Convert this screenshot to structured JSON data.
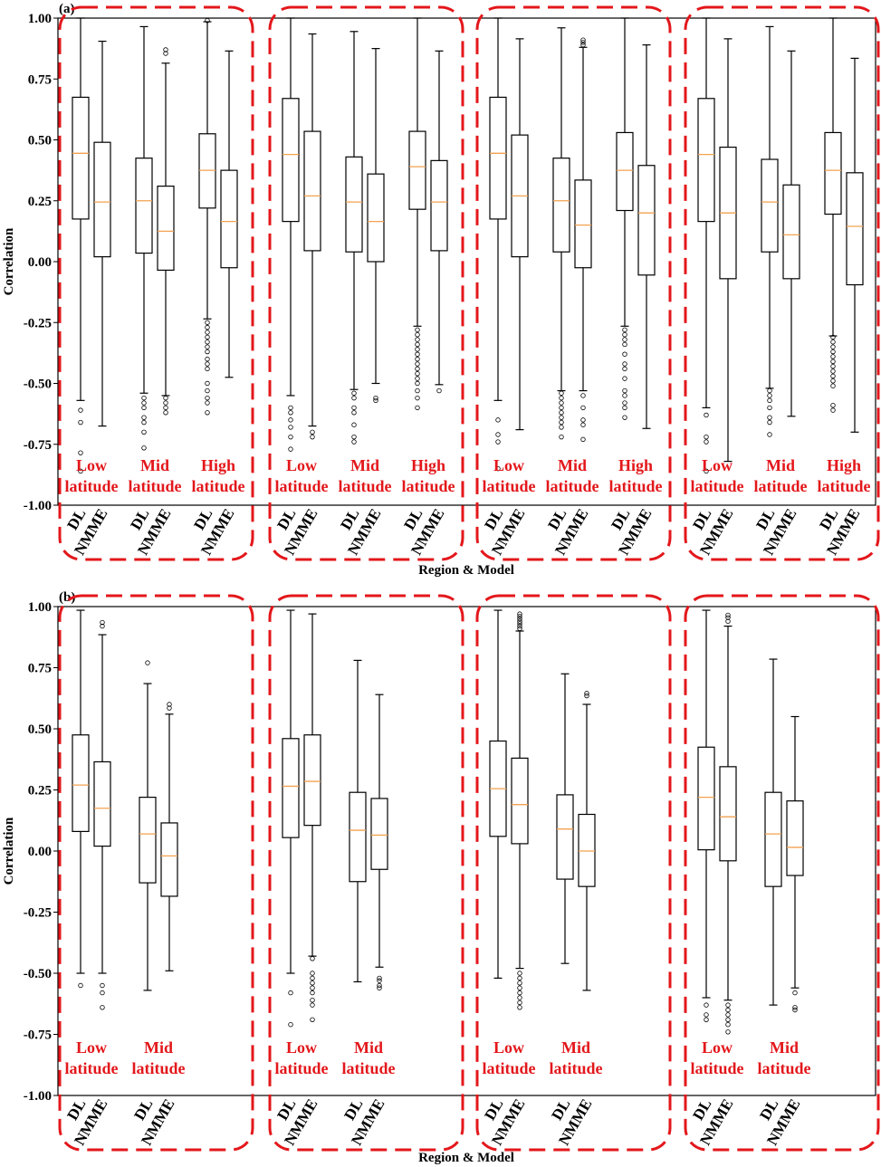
{
  "chart_data": [
    {
      "type": "box",
      "panel_label": "(a)",
      "xlabel": "Region & Model",
      "ylabel": "Correlation",
      "ylim": [
        -1.0,
        1.0
      ],
      "yticks": [
        "1.00",
        "0.75",
        "0.50",
        "0.25",
        "0.00",
        "-0.25",
        "-0.50",
        "-0.75",
        "-1.00"
      ],
      "regions": [
        [
          "Low",
          "latitude"
        ],
        [
          "Mid",
          "latitude"
        ],
        [
          "High",
          "latitude"
        ]
      ],
      "models": [
        "DL",
        "NMME"
      ],
      "groups": [
        {
          "boxes": [
            {
              "region": 0,
              "model": "DL",
              "q1": 0.175,
              "median": 0.445,
              "q3": 0.675,
              "wlo": -0.57,
              "whi": 1.0,
              "fliers": [
                -0.61,
                -0.66,
                -0.785,
                -0.86
              ]
            },
            {
              "region": 0,
              "model": "NMME",
              "q1": 0.02,
              "median": 0.245,
              "q3": 0.49,
              "wlo": -0.675,
              "whi": 0.905,
              "fliers": []
            },
            {
              "region": 1,
              "model": "DL",
              "q1": 0.035,
              "median": 0.25,
              "q3": 0.425,
              "wlo": -0.54,
              "whi": 0.965,
              "fliers": [
                -0.56,
                -0.58,
                -0.6,
                -0.64,
                -0.66,
                -0.7,
                -0.765
              ]
            },
            {
              "region": 1,
              "model": "NMME",
              "q1": -0.035,
              "median": 0.125,
              "q3": 0.31,
              "wlo": -0.55,
              "whi": 0.815,
              "fliers": [
                0.855,
                0.87,
                -0.56,
                -0.58,
                -0.6,
                -0.62
              ]
            },
            {
              "region": 2,
              "model": "DL",
              "q1": 0.22,
              "median": 0.375,
              "q3": 0.525,
              "wlo": -0.235,
              "whi": 0.985,
              "fliers": [
                0.99,
                -0.25,
                -0.27,
                -0.29,
                -0.31,
                -0.33,
                -0.35,
                -0.37,
                -0.4,
                -0.42,
                -0.44,
                -0.5,
                -0.53,
                -0.56,
                -0.58,
                -0.62
              ]
            },
            {
              "region": 2,
              "model": "NMME",
              "q1": -0.025,
              "median": 0.165,
              "q3": 0.375,
              "wlo": -0.475,
              "whi": 0.865,
              "fliers": []
            }
          ]
        },
        {
          "boxes": [
            {
              "region": 0,
              "model": "DL",
              "q1": 0.165,
              "median": 0.44,
              "q3": 0.67,
              "wlo": -0.55,
              "whi": 1.0,
              "fliers": [
                -0.6,
                -0.62,
                -0.65,
                -0.68,
                -0.72,
                -0.77
              ]
            },
            {
              "region": 0,
              "model": "NMME",
              "q1": 0.045,
              "median": 0.27,
              "q3": 0.535,
              "wlo": -0.675,
              "whi": 0.935,
              "fliers": [
                -0.7,
                -0.72
              ]
            },
            {
              "region": 1,
              "model": "DL",
              "q1": 0.04,
              "median": 0.245,
              "q3": 0.43,
              "wlo": -0.525,
              "whi": 0.945,
              "fliers": [
                -0.54,
                -0.56,
                -0.6,
                -0.62,
                -0.67,
                -0.72,
                -0.74
              ]
            },
            {
              "region": 1,
              "model": "NMME",
              "q1": 0.0,
              "median": 0.165,
              "q3": 0.36,
              "wlo": -0.5,
              "whi": 0.875,
              "fliers": [
                -0.56,
                -0.57
              ]
            },
            {
              "region": 2,
              "model": "DL",
              "q1": 0.215,
              "median": 0.39,
              "q3": 0.535,
              "wlo": -0.265,
              "whi": 1.0,
              "fliers": [
                -0.28,
                -0.3,
                -0.32,
                -0.34,
                -0.36,
                -0.38,
                -0.4,
                -0.42,
                -0.44,
                -0.46,
                -0.48,
                -0.5,
                -0.53,
                -0.56,
                -0.6
              ]
            },
            {
              "region": 2,
              "model": "NMME",
              "q1": 0.045,
              "median": 0.245,
              "q3": 0.415,
              "wlo": -0.505,
              "whi": 0.865,
              "fliers": [
                -0.53
              ]
            }
          ]
        },
        {
          "boxes": [
            {
              "region": 0,
              "model": "DL",
              "q1": 0.175,
              "median": 0.445,
              "q3": 0.675,
              "wlo": -0.57,
              "whi": 1.0,
              "fliers": [
                -0.65,
                -0.71,
                -0.74,
                -0.85
              ]
            },
            {
              "region": 0,
              "model": "NMME",
              "q1": 0.02,
              "median": 0.27,
              "q3": 0.52,
              "wlo": -0.69,
              "whi": 0.915,
              "fliers": []
            },
            {
              "region": 1,
              "model": "DL",
              "q1": 0.04,
              "median": 0.25,
              "q3": 0.425,
              "wlo": -0.53,
              "whi": 0.96,
              "fliers": [
                -0.54,
                -0.56,
                -0.58,
                -0.6,
                -0.62,
                -0.64,
                -0.66,
                -0.68,
                -0.72
              ]
            },
            {
              "region": 1,
              "model": "NMME",
              "q1": -0.025,
              "median": 0.15,
              "q3": 0.335,
              "wlo": -0.53,
              "whi": 0.88,
              "fliers": [
                0.89,
                0.9,
                0.91,
                -0.55,
                -0.6,
                -0.65,
                -0.67,
                -0.73
              ]
            },
            {
              "region": 2,
              "model": "DL",
              "q1": 0.21,
              "median": 0.375,
              "q3": 0.53,
              "wlo": -0.265,
              "whi": 1.0,
              "fliers": [
                -0.28,
                -0.3,
                -0.32,
                -0.34,
                -0.38,
                -0.42,
                -0.44,
                -0.48,
                -0.53,
                -0.55,
                -0.58,
                -0.6,
                -0.64
              ]
            },
            {
              "region": 2,
              "model": "NMME",
              "q1": -0.055,
              "median": 0.2,
              "q3": 0.395,
              "wlo": -0.685,
              "whi": 0.89,
              "fliers": []
            }
          ]
        },
        {
          "boxes": [
            {
              "region": 0,
              "model": "DL",
              "q1": 0.165,
              "median": 0.44,
              "q3": 0.67,
              "wlo": -0.6,
              "whi": 1.0,
              "fliers": [
                -0.63,
                -0.72,
                -0.74,
                -0.86
              ]
            },
            {
              "region": 0,
              "model": "NMME",
              "q1": -0.07,
              "median": 0.2,
              "q3": 0.47,
              "wlo": -0.82,
              "whi": 0.915,
              "fliers": []
            },
            {
              "region": 1,
              "model": "DL",
              "q1": 0.04,
              "median": 0.245,
              "q3": 0.42,
              "wlo": -0.52,
              "whi": 0.965,
              "fliers": [
                -0.53,
                -0.55,
                -0.57,
                -0.6,
                -0.64,
                -0.66,
                -0.71
              ]
            },
            {
              "region": 1,
              "model": "NMME",
              "q1": -0.07,
              "median": 0.11,
              "q3": 0.315,
              "wlo": -0.635,
              "whi": 0.865,
              "fliers": []
            },
            {
              "region": 2,
              "model": "DL",
              "q1": 0.195,
              "median": 0.375,
              "q3": 0.53,
              "wlo": -0.305,
              "whi": 1.0,
              "fliers": [
                -0.31,
                -0.33,
                -0.35,
                -0.37,
                -0.39,
                -0.41,
                -0.43,
                -0.45,
                -0.47,
                -0.49,
                -0.51,
                -0.59,
                -0.61
              ]
            },
            {
              "region": 2,
              "model": "NMME",
              "q1": -0.095,
              "median": 0.145,
              "q3": 0.365,
              "wlo": -0.7,
              "whi": 0.835,
              "fliers": []
            }
          ]
        }
      ]
    },
    {
      "type": "box",
      "panel_label": "(b)",
      "xlabel": "Region & Model",
      "ylabel": "Correlation",
      "ylim": [
        -1.0,
        1.0
      ],
      "yticks": [
        "1.00",
        "0.75",
        "0.50",
        "0.25",
        "0.00",
        "-0.25",
        "-0.50",
        "-0.75",
        "-1.00"
      ],
      "regions": [
        [
          "Low",
          "latitude"
        ],
        [
          "Mid",
          "latitude"
        ]
      ],
      "models": [
        "DL",
        "NMME"
      ],
      "groups": [
        {
          "boxes": [
            {
              "region": 0,
              "model": "DL",
              "q1": 0.08,
              "median": 0.27,
              "q3": 0.475,
              "wlo": -0.5,
              "whi": 0.985,
              "fliers": [
                -0.55
              ]
            },
            {
              "region": 0,
              "model": "NMME",
              "q1": 0.02,
              "median": 0.175,
              "q3": 0.365,
              "wlo": -0.5,
              "whi": 0.885,
              "fliers": [
                0.92,
                0.935,
                -0.55,
                -0.58,
                -0.64
              ]
            },
            {
              "region": 1,
              "model": "DL",
              "q1": -0.13,
              "median": 0.07,
              "q3": 0.22,
              "wlo": -0.57,
              "whi": 0.685,
              "fliers": [
                0.77
              ]
            },
            {
              "region": 1,
              "model": "NMME",
              "q1": -0.185,
              "median": -0.02,
              "q3": 0.115,
              "wlo": -0.49,
              "whi": 0.56,
              "fliers": [
                0.585,
                0.6
              ]
            }
          ]
        },
        {
          "boxes": [
            {
              "region": 0,
              "model": "DL",
              "q1": 0.055,
              "median": 0.265,
              "q3": 0.46,
              "wlo": -0.5,
              "whi": 0.985,
              "fliers": [
                -0.58,
                -0.71
              ]
            },
            {
              "region": 0,
              "model": "NMME",
              "q1": 0.105,
              "median": 0.285,
              "q3": 0.475,
              "wlo": -0.43,
              "whi": 0.97,
              "fliers": [
                -0.44,
                -0.5,
                -0.52,
                -0.54,
                -0.56,
                -0.58,
                -0.61,
                -0.63,
                -0.69
              ]
            },
            {
              "region": 1,
              "model": "DL",
              "q1": -0.125,
              "median": 0.085,
              "q3": 0.24,
              "wlo": -0.535,
              "whi": 0.78,
              "fliers": []
            },
            {
              "region": 1,
              "model": "NMME",
              "q1": -0.075,
              "median": 0.065,
              "q3": 0.215,
              "wlo": -0.475,
              "whi": 0.64,
              "fliers": [
                -0.52,
                -0.53,
                -0.55,
                -0.56
              ]
            }
          ]
        },
        {
          "boxes": [
            {
              "region": 0,
              "model": "DL",
              "q1": 0.06,
              "median": 0.255,
              "q3": 0.45,
              "wlo": -0.52,
              "whi": 0.985,
              "fliers": []
            },
            {
              "region": 0,
              "model": "NMME",
              "q1": 0.03,
              "median": 0.19,
              "q3": 0.38,
              "wlo": -0.48,
              "whi": 0.9,
              "fliers": [
                0.91,
                0.92,
                0.93,
                0.94,
                0.95,
                0.96,
                0.97,
                -0.5,
                -0.52,
                -0.54,
                -0.56,
                -0.58,
                -0.6,
                -0.62,
                -0.64
              ]
            },
            {
              "region": 1,
              "model": "DL",
              "q1": -0.115,
              "median": 0.09,
              "q3": 0.23,
              "wlo": -0.46,
              "whi": 0.725,
              "fliers": []
            },
            {
              "region": 1,
              "model": "NMME",
              "q1": -0.145,
              "median": 0.0,
              "q3": 0.15,
              "wlo": -0.57,
              "whi": 0.6,
              "fliers": [
                0.635,
                0.645
              ]
            }
          ]
        },
        {
          "boxes": [
            {
              "region": 0,
              "model": "DL",
              "q1": 0.005,
              "median": 0.22,
              "q3": 0.425,
              "wlo": -0.6,
              "whi": 0.985,
              "fliers": [
                -0.63,
                -0.67,
                -0.69
              ]
            },
            {
              "region": 0,
              "model": "NMME",
              "q1": -0.04,
              "median": 0.14,
              "q3": 0.345,
              "wlo": -0.61,
              "whi": 0.92,
              "fliers": [
                0.94,
                0.955,
                0.965,
                -0.63,
                -0.65,
                -0.67,
                -0.69,
                -0.71,
                -0.74
              ]
            },
            {
              "region": 1,
              "model": "DL",
              "q1": -0.145,
              "median": 0.07,
              "q3": 0.24,
              "wlo": -0.63,
              "whi": 0.785,
              "fliers": []
            },
            {
              "region": 1,
              "model": "NMME",
              "q1": -0.1,
              "median": 0.015,
              "q3": 0.205,
              "wlo": -0.56,
              "whi": 0.55,
              "fliers": [
                -0.58,
                -0.64,
                -0.65
              ]
            }
          ]
        }
      ]
    }
  ]
}
